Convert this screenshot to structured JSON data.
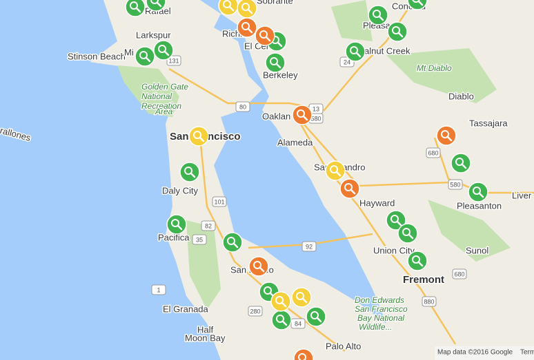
{
  "places": [
    "Rafael",
    "Larkspur",
    "Stinson Beach",
    "Mi",
    "Sobrante",
    "Richm",
    "El Cerr",
    "Berkeley",
    "Concord",
    "Pleasa",
    "alnut Creek",
    "Mt Diablo",
    "Golden Gate",
    "National",
    "Recreation",
    "Area",
    "Oaklan",
    "Diablo",
    "Tassajara",
    "San Francisco",
    "Alameda",
    "San Leandro",
    "Daly City",
    "Hayward",
    "Pleasanton",
    "Liver",
    "Pacifica",
    "Union City",
    "Sunol",
    "San Mateo",
    "Fremont",
    "Don Edwards",
    "San Francisco",
    "Bay National",
    "Wildlife...",
    "El Granada",
    "Half",
    "Moon Bay",
    "Palo Alto",
    "rallones"
  ],
  "highways": [
    "131",
    "80",
    "13",
    "580",
    "24",
    "680",
    "101",
    "82",
    "35",
    "92",
    "1",
    "280",
    "84",
    "880",
    "580",
    "680"
  ],
  "footer": {
    "attribution": "Map data ©2016 Google",
    "terms": "Term"
  }
}
